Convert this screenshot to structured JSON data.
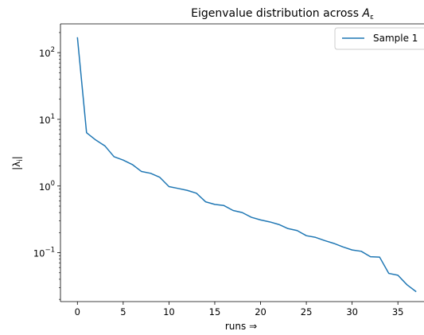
{
  "chart_data": {
    "type": "line",
    "title": "Eigenvalue distribution across ",
    "title_math": "A",
    "title_math_sub": "ε",
    "xlabel": "runs ⇒",
    "ylabel": "|λᵢ|",
    "ylabel_main": "|λ",
    "ylabel_sub": "i",
    "ylabel_end": "|",
    "yscale": "log",
    "xlim": [
      -1.85,
      37.85
    ],
    "ylim": [
      0.0185,
      270
    ],
    "x_ticks": [
      0,
      5,
      10,
      15,
      20,
      25,
      30,
      35
    ],
    "y_ticks": [
      {
        "value": 100,
        "base": "10",
        "exp": "2"
      },
      {
        "value": 10,
        "base": "10",
        "exp": "1"
      },
      {
        "value": 1,
        "base": "10",
        "exp": "0"
      },
      {
        "value": 0.1,
        "base": "10",
        "exp": "−1"
      }
    ],
    "grid": false,
    "legend_position": "top-right",
    "series": [
      {
        "name": "Sample 1",
        "color": "#1f77b4",
        "x": [
          0,
          1,
          2,
          3,
          4,
          5,
          6,
          7,
          8,
          9,
          10,
          11,
          12,
          13,
          14,
          15,
          16,
          17,
          18,
          19,
          20,
          21,
          22,
          23,
          24,
          25,
          26,
          27,
          28,
          29,
          30,
          31,
          32,
          33,
          34,
          35,
          36,
          37
        ],
        "y": [
          170,
          6.3,
          4.9,
          4.0,
          2.75,
          2.45,
          2.1,
          1.65,
          1.55,
          1.35,
          0.98,
          0.92,
          0.86,
          0.78,
          0.58,
          0.53,
          0.51,
          0.43,
          0.4,
          0.34,
          0.31,
          0.29,
          0.265,
          0.23,
          0.215,
          0.18,
          0.17,
          0.152,
          0.138,
          0.122,
          0.11,
          0.105,
          0.087,
          0.086,
          0.049,
          0.046,
          0.033,
          0.026
        ]
      }
    ]
  }
}
